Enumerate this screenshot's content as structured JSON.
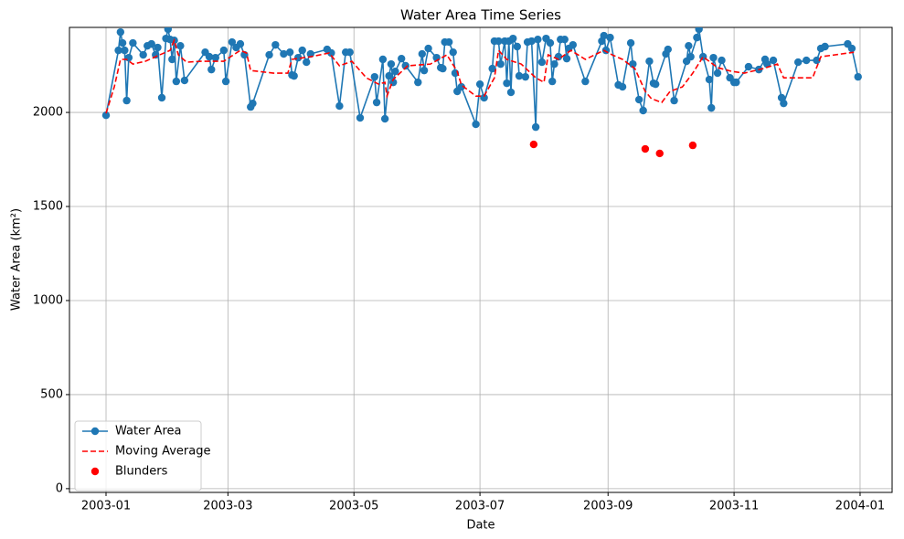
{
  "chart_data": {
    "type": "line",
    "title": "Water Area Time Series",
    "x_label": "Date",
    "y_label": "Water Area (km²)",
    "xlim": [
      -17.7,
      380.5
    ],
    "ylim": [
      -20,
      2452
    ],
    "xticks": [
      {
        "value": 0,
        "label": "2003-01"
      },
      {
        "value": 59,
        "label": "2003-03"
      },
      {
        "value": 120,
        "label": "2003-05"
      },
      {
        "value": 181,
        "label": "2003-07"
      },
      {
        "value": 243,
        "label": "2003-09"
      },
      {
        "value": 304,
        "label": "2003-11"
      },
      {
        "value": 365,
        "label": "2004-01"
      }
    ],
    "yticks": [
      0,
      500,
      1000,
      1500,
      2000
    ],
    "grid": true,
    "legend": "lower left",
    "series": [
      {
        "name": "Water Area",
        "color": "#1f77b4",
        "linestyle": "solid",
        "marker": "circle",
        "x": [
          0,
          6,
          7,
          8,
          9,
          10,
          11,
          13,
          18,
          20,
          22,
          24,
          25,
          27,
          29,
          30,
          31,
          32,
          33,
          34,
          36,
          38,
          48,
          50,
          51,
          53,
          57,
          58,
          61,
          63,
          65,
          67,
          70,
          71,
          79,
          82,
          86,
          89,
          90,
          91,
          93,
          95,
          97,
          99,
          107,
          109,
          113,
          116,
          118,
          123,
          130,
          131,
          134,
          135,
          137,
          138,
          139,
          140,
          143,
          145,
          151,
          153,
          154,
          156,
          160,
          162,
          163,
          164,
          166,
          168,
          169,
          170,
          172,
          179,
          181,
          183,
          187,
          188,
          190,
          191,
          193,
          194,
          195,
          196,
          197,
          199,
          200,
          203,
          204,
          206,
          208,
          209,
          211,
          213,
          215,
          216,
          217,
          219,
          220,
          222,
          223,
          224,
          226,
          232,
          240,
          241,
          242,
          244,
          248,
          250,
          254,
          255,
          258,
          260,
          263,
          265,
          266,
          271,
          272,
          275,
          281,
          282,
          283,
          286,
          287,
          289,
          292,
          293,
          294,
          296,
          298,
          302,
          304,
          305,
          311,
          316,
          319,
          320,
          323,
          327,
          328,
          335,
          339,
          344,
          346,
          348,
          359,
          361,
          364
        ],
        "values": [
          1985,
          2330,
          2427,
          2369,
          2330,
          2063,
          2291,
          2369,
          2306,
          2354,
          2364,
          2306,
          2345,
          2078,
          2393,
          2442,
          2388,
          2282,
          2383,
          2165,
          2354,
          2170,
          2320,
          2296,
          2228,
          2291,
          2330,
          2165,
          2374,
          2345,
          2364,
          2306,
          2029,
          2048,
          2306,
          2359,
          2311,
          2320,
          2199,
          2194,
          2291,
          2330,
          2267,
          2311,
          2335,
          2316,
          2034,
          2320,
          2320,
          1971,
          2189,
          2053,
          2282,
          1966,
          2194,
          2257,
          2160,
          2218,
          2286,
          2248,
          2160,
          2311,
          2223,
          2340,
          2291,
          2238,
          2233,
          2374,
          2374,
          2320,
          2209,
          2112,
          2136,
          1937,
          2150,
          2078,
          2233,
          2379,
          2379,
          2257,
          2379,
          2155,
          2379,
          2107,
          2393,
          2350,
          2194,
          2189,
          2374,
          2379,
          1922,
          2388,
          2267,
          2393,
          2369,
          2165,
          2257,
          2296,
          2388,
          2388,
          2286,
          2340,
          2359,
          2165,
          2379,
          2408,
          2330,
          2398,
          2146,
          2136,
          2369,
          2257,
          2068,
          2010,
          2272,
          2155,
          2150,
          2311,
          2335,
          2063,
          2272,
          2354,
          2296,
          2398,
          2442,
          2296,
          2175,
          2024,
          2291,
          2209,
          2277,
          2184,
          2160,
          2160,
          2243,
          2228,
          2282,
          2257,
          2277,
          2078,
          2048,
          2267,
          2277,
          2277,
          2340,
          2350,
          2364,
          2340,
          2189
        ]
      },
      {
        "name": "Moving Average",
        "color": "#ff0000",
        "linestyle": "dashed",
        "marker": "none",
        "x": [
          0,
          4,
          7,
          10,
          13,
          19,
          26,
          31,
          33,
          35,
          39,
          46,
          57,
          65,
          68,
          70,
          81,
          88,
          90,
          99,
          108,
          113,
          119,
          126,
          132,
          135,
          136,
          139,
          146,
          157,
          165,
          170,
          172,
          179,
          183,
          188,
          190,
          194,
          201,
          208,
          212,
          214,
          219,
          225,
          232,
          241,
          245,
          250,
          256,
          261,
          264,
          269,
          273,
          279,
          284,
          289,
          296,
          303,
          309,
          318,
          325,
          328,
          342,
          346,
          362
        ],
        "values": [
          1995,
          2136,
          2282,
          2282,
          2257,
          2272,
          2306,
          2330,
          2383,
          2306,
          2267,
          2272,
          2272,
          2330,
          2316,
          2223,
          2209,
          2209,
          2282,
          2296,
          2316,
          2248,
          2272,
          2184,
          2150,
          2160,
          2087,
          2175,
          2248,
          2257,
          2306,
          2218,
          2146,
          2087,
          2087,
          2184,
          2330,
          2282,
          2257,
          2184,
          2160,
          2306,
          2282,
          2330,
          2282,
          2330,
          2306,
          2282,
          2233,
          2112,
          2073,
          2053,
          2112,
          2136,
          2209,
          2296,
          2238,
          2218,
          2209,
          2233,
          2257,
          2184,
          2184,
          2296,
          2320
        ]
      },
      {
        "name": "Blunders",
        "color": "#ff0000",
        "linestyle": "none",
        "marker": "circle",
        "x": [
          207,
          261,
          268,
          284
        ],
        "values": [
          1830,
          1806,
          1782,
          1825
        ]
      }
    ]
  }
}
